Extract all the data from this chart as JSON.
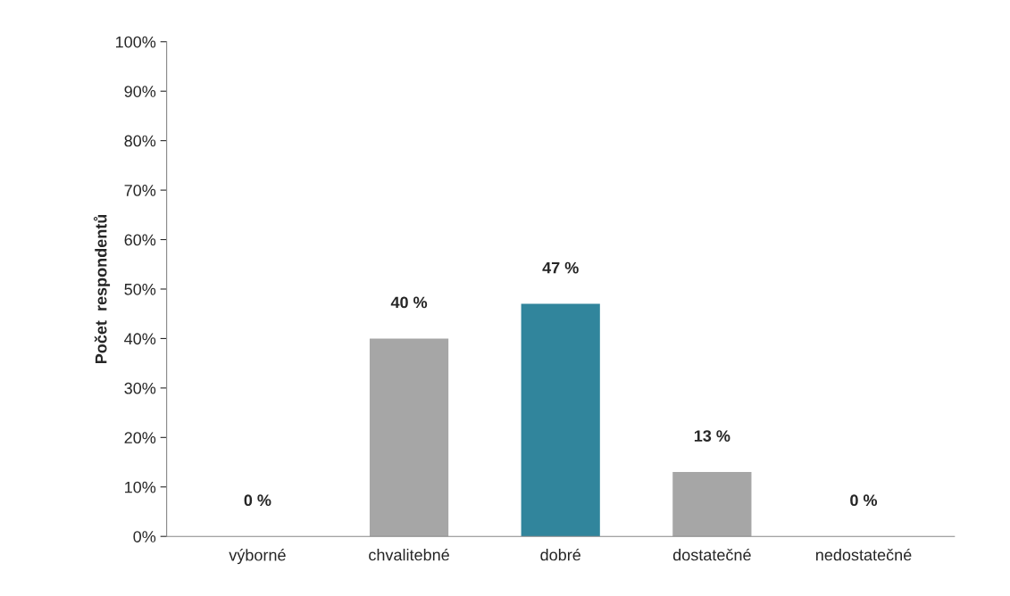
{
  "chart_data": {
    "type": "bar",
    "ylabel": "Počet  respondentů",
    "categories": [
      "výborné",
      "chvalitebné",
      "dobré",
      "dostatečné",
      "nedostatečné"
    ],
    "values": [
      0,
      40,
      47,
      13,
      0
    ],
    "colors": [
      "#808080",
      "#a6a6a6",
      "#31859c",
      "#a6a6a6",
      "#808080"
    ],
    "value_labels": [
      "0 %",
      "40 %",
      "47 %",
      "13 %",
      "0 %"
    ],
    "ylim": [
      0,
      100
    ],
    "yticks": [
      {
        "value": 0,
        "label": "0%"
      },
      {
        "value": 10,
        "label": "10%"
      },
      {
        "value": 20,
        "label": "20%"
      },
      {
        "value": 30,
        "label": "30%"
      },
      {
        "value": 40,
        "label": "40%"
      },
      {
        "value": 50,
        "label": "50%"
      },
      {
        "value": 60,
        "label": "60%"
      },
      {
        "value": 70,
        "label": "70%"
      },
      {
        "value": 80,
        "label": "80%"
      },
      {
        "value": 90,
        "label": "90%"
      },
      {
        "value": 100,
        "label": "100%"
      }
    ],
    "grid": false,
    "legend": false
  }
}
